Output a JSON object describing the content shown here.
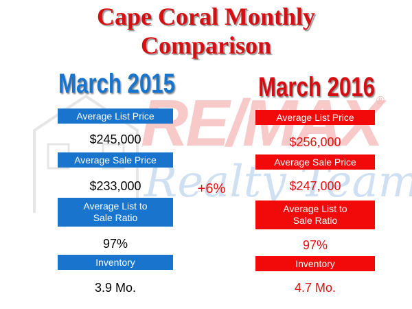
{
  "title": {
    "line1": "Cape Coral Monthly",
    "line2": "Comparison"
  },
  "colors": {
    "title_red": "#d40f14",
    "year_blue": "#1874cd",
    "year_red": "#d40f14",
    "bar_blue": "#1874cd",
    "bar_red": "#f20a0a"
  },
  "watermark": {
    "brand": "RE/MAX",
    "registered": "®",
    "tagline": "Realty Team"
  },
  "change": "+6%",
  "left": {
    "year": "March 2015",
    "list_price_label": "Average List Price",
    "list_price": "$245,000",
    "sale_price_label": "Average Sale Price",
    "sale_price": "$233,000",
    "ratio_label_1": "Average List to",
    "ratio_label_2": "Sale Ratio",
    "ratio": "97%",
    "inventory_label": "Inventory",
    "inventory": "3.9 Mo."
  },
  "right": {
    "year": "March 2016",
    "list_price_label": "Average List Price",
    "list_price": "$256,000",
    "sale_price_label": "Average Sale Price",
    "sale_price": "$247,000",
    "ratio_label_1": "Average List to",
    "ratio_label_2": "Sale Ratio",
    "ratio": "97%",
    "inventory_label": "Inventory",
    "inventory": "4.7 Mo."
  }
}
